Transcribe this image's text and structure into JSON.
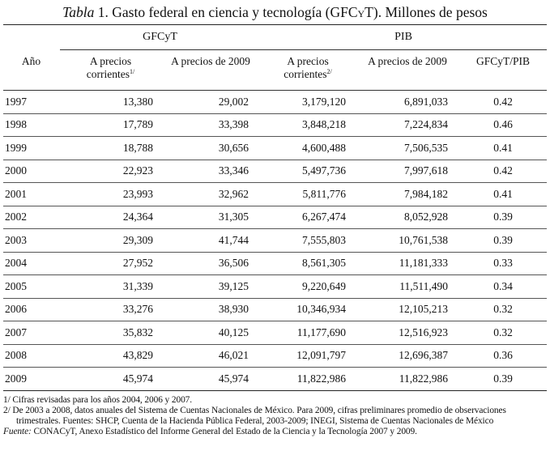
{
  "title": {
    "label": "Tabla",
    "number": "1.",
    "text_before": "Gasto federal en ciencia y tecnología (",
    "abbr": "GFCyT",
    "text_after": "). Millones de pesos"
  },
  "groups": {
    "gfcyt": "GFCyT",
    "pib": "PIB"
  },
  "columns": {
    "year": "Año",
    "gfcyt_current_line1": "A precios",
    "gfcyt_current_line2": "corrientes",
    "gfcyt_current_note": "1/",
    "gfcyt_2009": "A precios de 2009",
    "pib_current_line1": "A precios",
    "pib_current_line2": "corrientes",
    "pib_current_note": "2/",
    "pib_2009": "A precios de 2009",
    "ratio": "GFCyT/PIB"
  },
  "rows": [
    {
      "year": "1997",
      "gfcyt_current": "13,380",
      "gfcyt_2009": "29,002",
      "pib_current": "3,179,120",
      "pib_2009": "6,891,033",
      "ratio": "0.42"
    },
    {
      "year": "1998",
      "gfcyt_current": "17,789",
      "gfcyt_2009": "33,398",
      "pib_current": "3,848,218",
      "pib_2009": "7,224,834",
      "ratio": "0.46"
    },
    {
      "year": "1999",
      "gfcyt_current": "18,788",
      "gfcyt_2009": "30,656",
      "pib_current": "4,600,488",
      "pib_2009": "7,506,535",
      "ratio": "0.41"
    },
    {
      "year": "2000",
      "gfcyt_current": "22,923",
      "gfcyt_2009": "33,346",
      "pib_current": "5,497,736",
      "pib_2009": "7,997,618",
      "ratio": "0.42"
    },
    {
      "year": "2001",
      "gfcyt_current": "23,993",
      "gfcyt_2009": "32,962",
      "pib_current": "5,811,776",
      "pib_2009": "7,984,182",
      "ratio": "0.41"
    },
    {
      "year": "2002",
      "gfcyt_current": "24,364",
      "gfcyt_2009": "31,305",
      "pib_current": "6,267,474",
      "pib_2009": "8,052,928",
      "ratio": "0.39"
    },
    {
      "year": "2003",
      "gfcyt_current": "29,309",
      "gfcyt_2009": "41,744",
      "pib_current": "7,555,803",
      "pib_2009": "10,761,538",
      "ratio": "0.39"
    },
    {
      "year": "2004",
      "gfcyt_current": "27,952",
      "gfcyt_2009": "36,506",
      "pib_current": "8,561,305",
      "pib_2009": "11,181,333",
      "ratio": "0.33"
    },
    {
      "year": "2005",
      "gfcyt_current": "31,339",
      "gfcyt_2009": "39,125",
      "pib_current": "9,220,649",
      "pib_2009": "11,511,490",
      "ratio": "0.34"
    },
    {
      "year": "2006",
      "gfcyt_current": "33,276",
      "gfcyt_2009": "38,930",
      "pib_current": "10,346,934",
      "pib_2009": "12,105,213",
      "ratio": "0.32"
    },
    {
      "year": "2007",
      "gfcyt_current": "35,832",
      "gfcyt_2009": "40,125",
      "pib_current": "11,177,690",
      "pib_2009": "12,516,923",
      "ratio": "0.32"
    },
    {
      "year": "2008",
      "gfcyt_current": "43,829",
      "gfcyt_2009": "46,021",
      "pib_current": "12,091,797",
      "pib_2009": "12,696,387",
      "ratio": "0.36"
    },
    {
      "year": "2009",
      "gfcyt_current": "45,974",
      "gfcyt_2009": "45,974",
      "pib_current": "11,822,986",
      "pib_2009": "11,822,986",
      "ratio": "0.39"
    }
  ],
  "notes": {
    "note1": "1/ Cifras revisadas para los años 2004, 2006 y 2007.",
    "note2": "2/ De 2003 a 2008, datos anuales del Sistema de Cuentas Nacionales de México. Para 2009, cifras preliminares promedio de observaciones trimestrales. Fuentes: SHCP, Cuenta de la Hacienda Pública Federal, 2003-2009; INEGI, Sistema de Cuentas Nacionales de México",
    "source_label": "Fuente:",
    "source_text": "CONACyT, Anexo Estadístico del Informe General del Estado de la Ciencia y la Tecnología 2007 y 2009."
  }
}
